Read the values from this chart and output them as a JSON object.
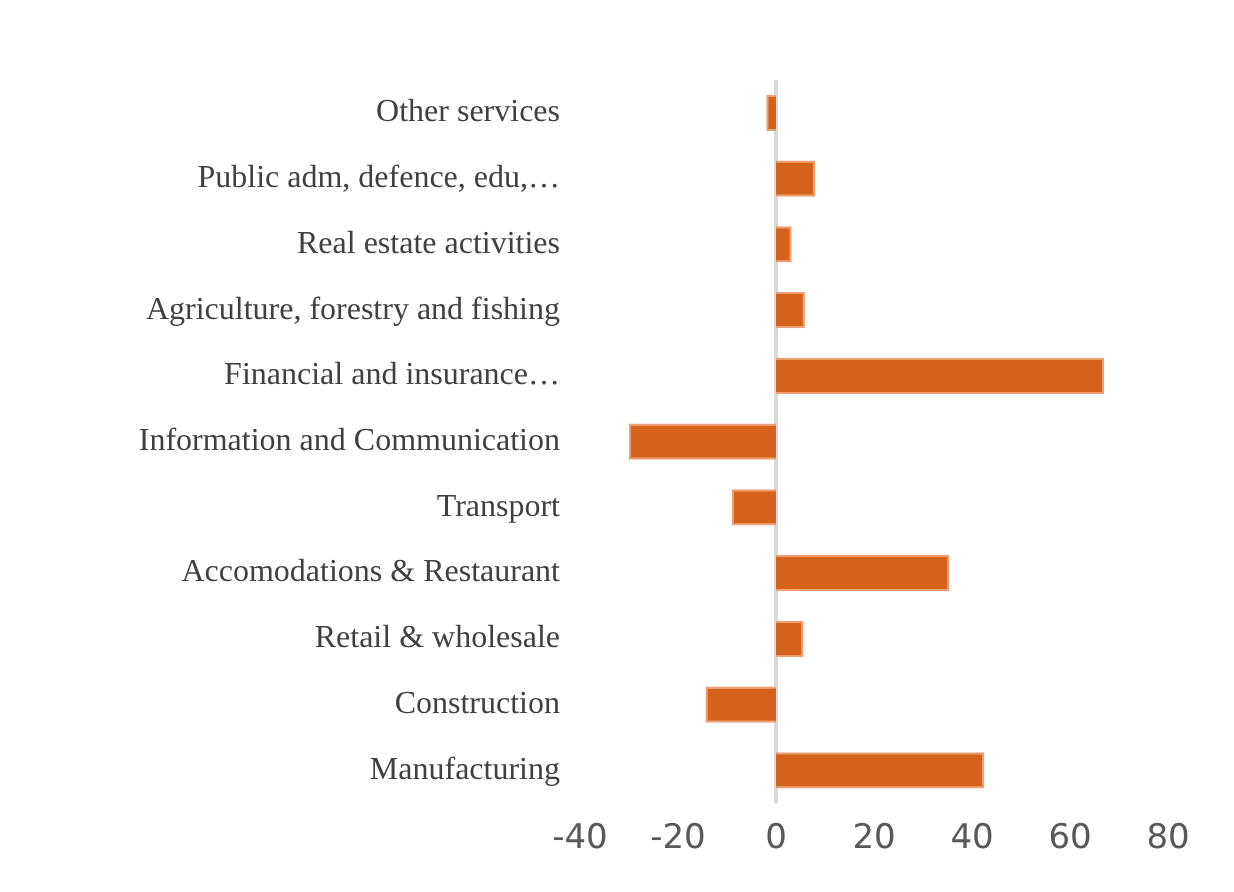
{
  "chart_data": {
    "type": "bar",
    "orientation": "horizontal",
    "categories": [
      "Other services",
      "Public adm, defence, edu,…",
      "Real estate activities",
      "Agriculture, forestry and fishing",
      "Financial and insurance…",
      "Information and Communication",
      "Transport",
      "Accomodations & Restaurant",
      "Retail & wholesale",
      "Construction",
      "Manufacturing"
    ],
    "values": [
      -2,
      8,
      3.2,
      5.9,
      67,
      -30,
      -9,
      35.4,
      5.6,
      -14.4,
      42.5
    ],
    "color": "#d5621a",
    "xlim": [
      -40,
      80
    ],
    "xticks": [
      -40,
      -20,
      0,
      20,
      40,
      60,
      80
    ],
    "ref_lines": [
      {
        "axis": "x",
        "value": 0,
        "color": "#d9d9d9"
      }
    ],
    "grid": false,
    "legend": false
  }
}
